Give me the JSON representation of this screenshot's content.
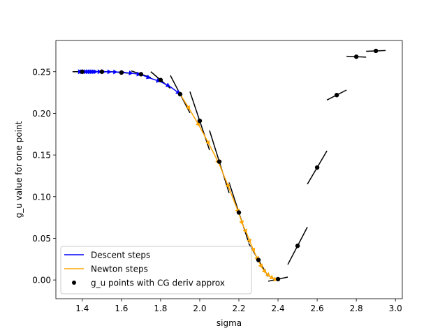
{
  "chart_data": {
    "type": "scatter",
    "title": "",
    "xlabel": "sigma",
    "ylabel": "g_u value for one point",
    "xlim": [
      1.265,
      3.035
    ],
    "ylim": [
      -0.0225,
      0.2875
    ],
    "xticks": [
      1.4,
      1.6,
      1.8,
      2.0,
      2.2,
      2.4,
      2.6,
      2.8,
      3.0
    ],
    "xtick_labels": [
      "1.4",
      "1.6",
      "1.8",
      "2.0",
      "2.2",
      "2.4",
      "2.6",
      "2.8",
      "3.0"
    ],
    "yticks": [
      0.0,
      0.05,
      0.1,
      0.15,
      0.2,
      0.25
    ],
    "ytick_labels": [
      "0.00",
      "0.05",
      "0.10",
      "0.15",
      "0.20",
      "0.25"
    ],
    "grid": false,
    "legend_position": "lower-left",
    "colors": {
      "descent": "#0000ff",
      "newton": "#ffa500",
      "points": "#000000",
      "tangents": "#000000"
    },
    "legend": [
      {
        "label": "Descent steps",
        "kind": "line",
        "color": "#0000ff"
      },
      {
        "label": "Newton steps",
        "kind": "line",
        "color": "#ffa500"
      },
      {
        "label": "g_u points with CG deriv approx",
        "kind": "marker",
        "color": "#000000"
      }
    ],
    "descent_steps": {
      "name": "Descent steps",
      "points": [
        [
          1.4,
          0.25
        ],
        [
          1.4,
          0.25
        ],
        [
          1.41,
          0.25
        ],
        [
          1.42,
          0.25
        ],
        [
          1.43,
          0.25
        ],
        [
          1.44,
          0.25
        ],
        [
          1.45,
          0.25
        ],
        [
          1.46,
          0.25
        ],
        [
          1.47,
          0.25
        ],
        [
          1.48,
          0.25
        ],
        [
          1.5,
          0.25
        ],
        [
          1.52,
          0.2499
        ],
        [
          1.55,
          0.2498
        ],
        [
          1.58,
          0.2496
        ],
        [
          1.62,
          0.249
        ],
        [
          1.66,
          0.248
        ],
        [
          1.7,
          0.2465
        ],
        [
          1.75,
          0.242
        ],
        [
          1.8,
          0.238
        ],
        [
          1.85,
          0.232
        ],
        [
          1.9,
          0.223
        ]
      ]
    },
    "newton_steps": {
      "name": "Newton steps",
      "points": [
        [
          1.9,
          0.223
        ],
        [
          1.95,
          0.204
        ],
        [
          2.0,
          0.184
        ],
        [
          2.05,
          0.162
        ],
        [
          2.1,
          0.139
        ],
        [
          2.15,
          0.11
        ],
        [
          2.2,
          0.08
        ],
        [
          2.22,
          0.066
        ],
        [
          2.24,
          0.056
        ],
        [
          2.26,
          0.044
        ],
        [
          2.28,
          0.033
        ],
        [
          2.3,
          0.023
        ],
        [
          2.32,
          0.014
        ],
        [
          2.34,
          0.008
        ],
        [
          2.36,
          0.004
        ],
        [
          2.38,
          0.001
        ],
        [
          2.4,
          0.0
        ]
      ]
    },
    "g_u_points": {
      "name": "g_u points with CG deriv approx",
      "points": [
        {
          "x": 1.4,
          "y": 0.25,
          "slope": 0.0
        },
        {
          "x": 1.5,
          "y": 0.25,
          "slope": 0.0
        },
        {
          "x": 1.6,
          "y": 0.249,
          "slope": -0.02
        },
        {
          "x": 1.7,
          "y": 0.247,
          "slope": -0.08
        },
        {
          "x": 1.8,
          "y": 0.24,
          "slope": -0.2
        },
        {
          "x": 1.9,
          "y": 0.223,
          "slope": -0.45
        },
        {
          "x": 2.0,
          "y": 0.191,
          "slope": -0.7
        },
        {
          "x": 2.1,
          "y": 0.142,
          "slope": -0.75
        },
        {
          "x": 2.2,
          "y": 0.081,
          "slope": -0.72
        },
        {
          "x": 2.3,
          "y": 0.024,
          "slope": -0.4
        },
        {
          "x": 2.4,
          "y": 0.001,
          "slope": 0.05
        },
        {
          "x": 2.5,
          "y": 0.041,
          "slope": 0.45
        },
        {
          "x": 2.6,
          "y": 0.135,
          "slope": 0.4
        },
        {
          "x": 2.7,
          "y": 0.222,
          "slope": 0.12
        },
        {
          "x": 2.8,
          "y": 0.268,
          "slope": -0.01
        },
        {
          "x": 2.9,
          "y": 0.275,
          "slope": 0.01
        }
      ]
    }
  }
}
